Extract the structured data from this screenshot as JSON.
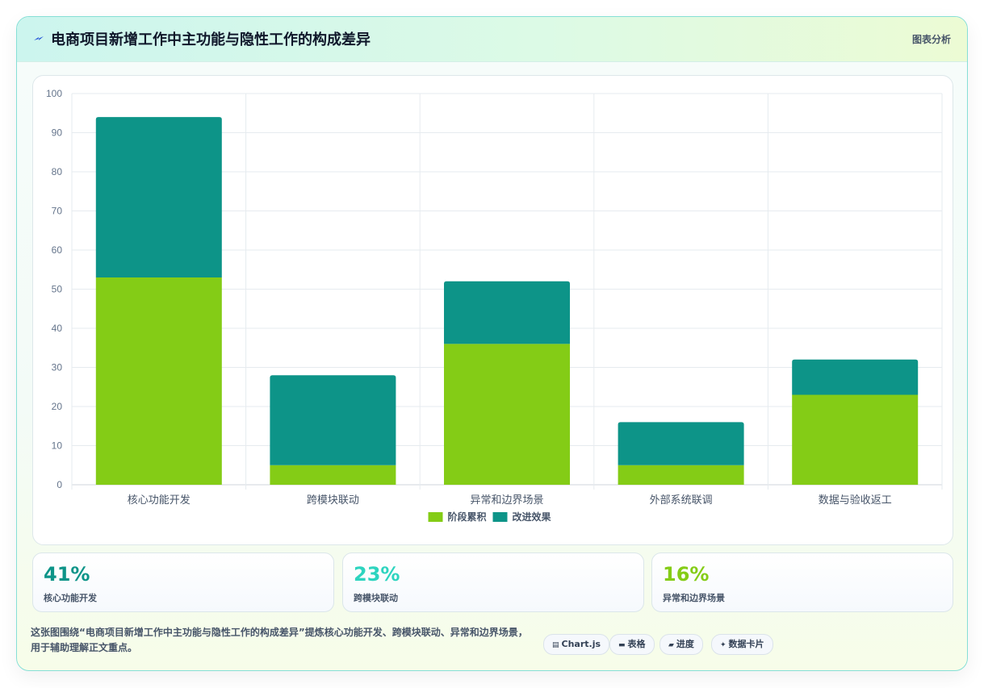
{
  "header": {
    "title": "电商项目新增工作中主功能与隐性工作的构成差异",
    "tag": "图表分析",
    "icon": "lightning-icon"
  },
  "chart_data": {
    "type": "bar",
    "stacked": true,
    "categories": [
      "核心功能开发",
      "跨模块联动",
      "异常和边界场景",
      "外部系统联调",
      "数据与验收返工"
    ],
    "series": [
      {
        "name": "阶段累积",
        "values": [
          53,
          5,
          36,
          5,
          23
        ],
        "color": "#84cc16"
      },
      {
        "name": "改进效果",
        "values": [
          41,
          23,
          16,
          11,
          9
        ],
        "color": "#0d9488"
      }
    ],
    "ylim": [
      0,
      100
    ],
    "yticks": [
      0,
      10,
      20,
      30,
      40,
      50,
      60,
      70,
      80,
      90,
      100
    ],
    "grid": true,
    "legend_position": "bottom"
  },
  "stats": [
    {
      "value": "41%",
      "label": "核心功能开发",
      "color": "#0d9488"
    },
    {
      "value": "23%",
      "label": "跨模块联动",
      "color": "#2dd4bf"
    },
    {
      "value": "16%",
      "label": "异常和边界场景",
      "color": "#84cc16"
    }
  ],
  "footer": {
    "description": "这张图围绕“电商项目新增工作中主功能与隐性工作的构成差异”提炼核心功能开发、跨模块联动、异常和边界场景，用于辅助理解正文重点。",
    "chips": [
      {
        "label": "Chart.js",
        "icon": "chart-icon"
      },
      {
        "label": "表格",
        "icon": "table-icon"
      },
      {
        "label": "进度",
        "icon": "progress-icon"
      },
      {
        "label": "数据卡片",
        "icon": "sparkle-icon"
      }
    ]
  }
}
